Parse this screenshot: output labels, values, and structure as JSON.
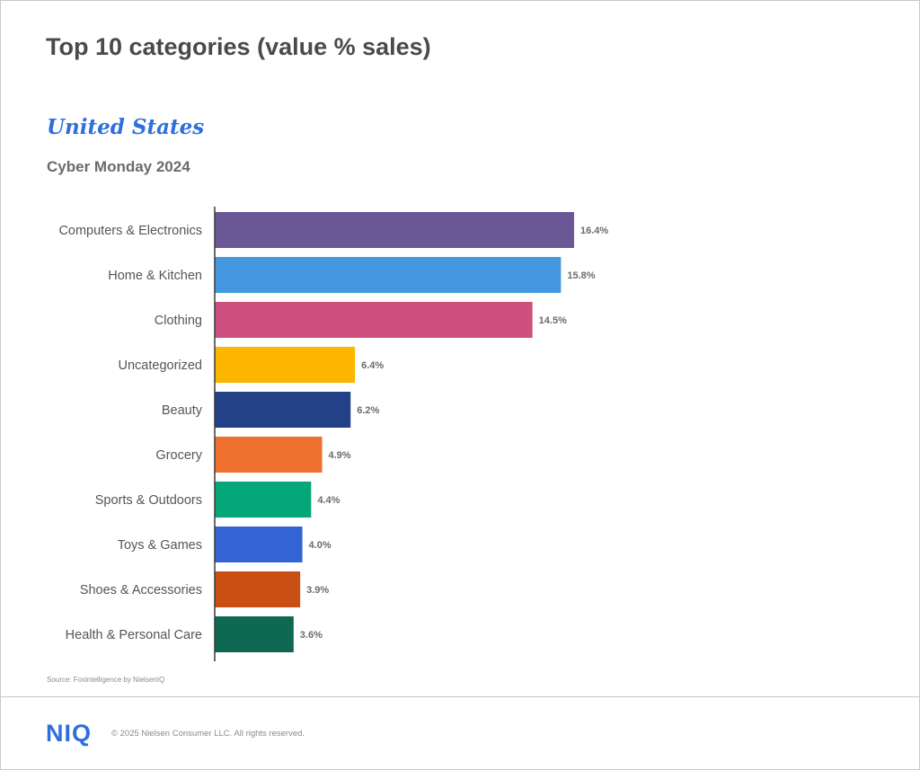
{
  "page": {
    "title": "Top 10 categories (value % sales)",
    "country": "United States",
    "subtitle": "Cyber Monday 2024"
  },
  "chart_data": {
    "type": "bar",
    "orientation": "horizontal",
    "categories": [
      "Computers & Electronics",
      "Home & Kitchen",
      "Clothing",
      "Uncategorized",
      "Beauty",
      "Grocery",
      "Sports & Outdoors",
      "Toys & Games",
      "Shoes & Accessories",
      "Health & Personal Care"
    ],
    "values": [
      16.4,
      15.8,
      14.5,
      6.4,
      6.2,
      4.9,
      4.4,
      4.0,
      3.9,
      3.6
    ],
    "value_labels": [
      "16.4%",
      "15.8%",
      "14.5%",
      "6.4%",
      "6.2%",
      "4.9%",
      "4.4%",
      "4.0%",
      "3.9%",
      "3.6%"
    ],
    "colors": [
      "#6a5896",
      "#4498e0",
      "#cd4f7e",
      "#fdb600",
      "#224186",
      "#ef6f2f",
      "#04a67a",
      "#3464d4",
      "#c94f14",
      "#0e6852"
    ],
    "xlim": [
      0,
      20
    ],
    "grid": false,
    "legend": "none"
  },
  "footer": {
    "source": "Source: Foxintelligence by NielsenIQ",
    "logo": "NIQ",
    "copyright": "© 2025 Nielsen Consumer LLC. All rights reserved."
  }
}
